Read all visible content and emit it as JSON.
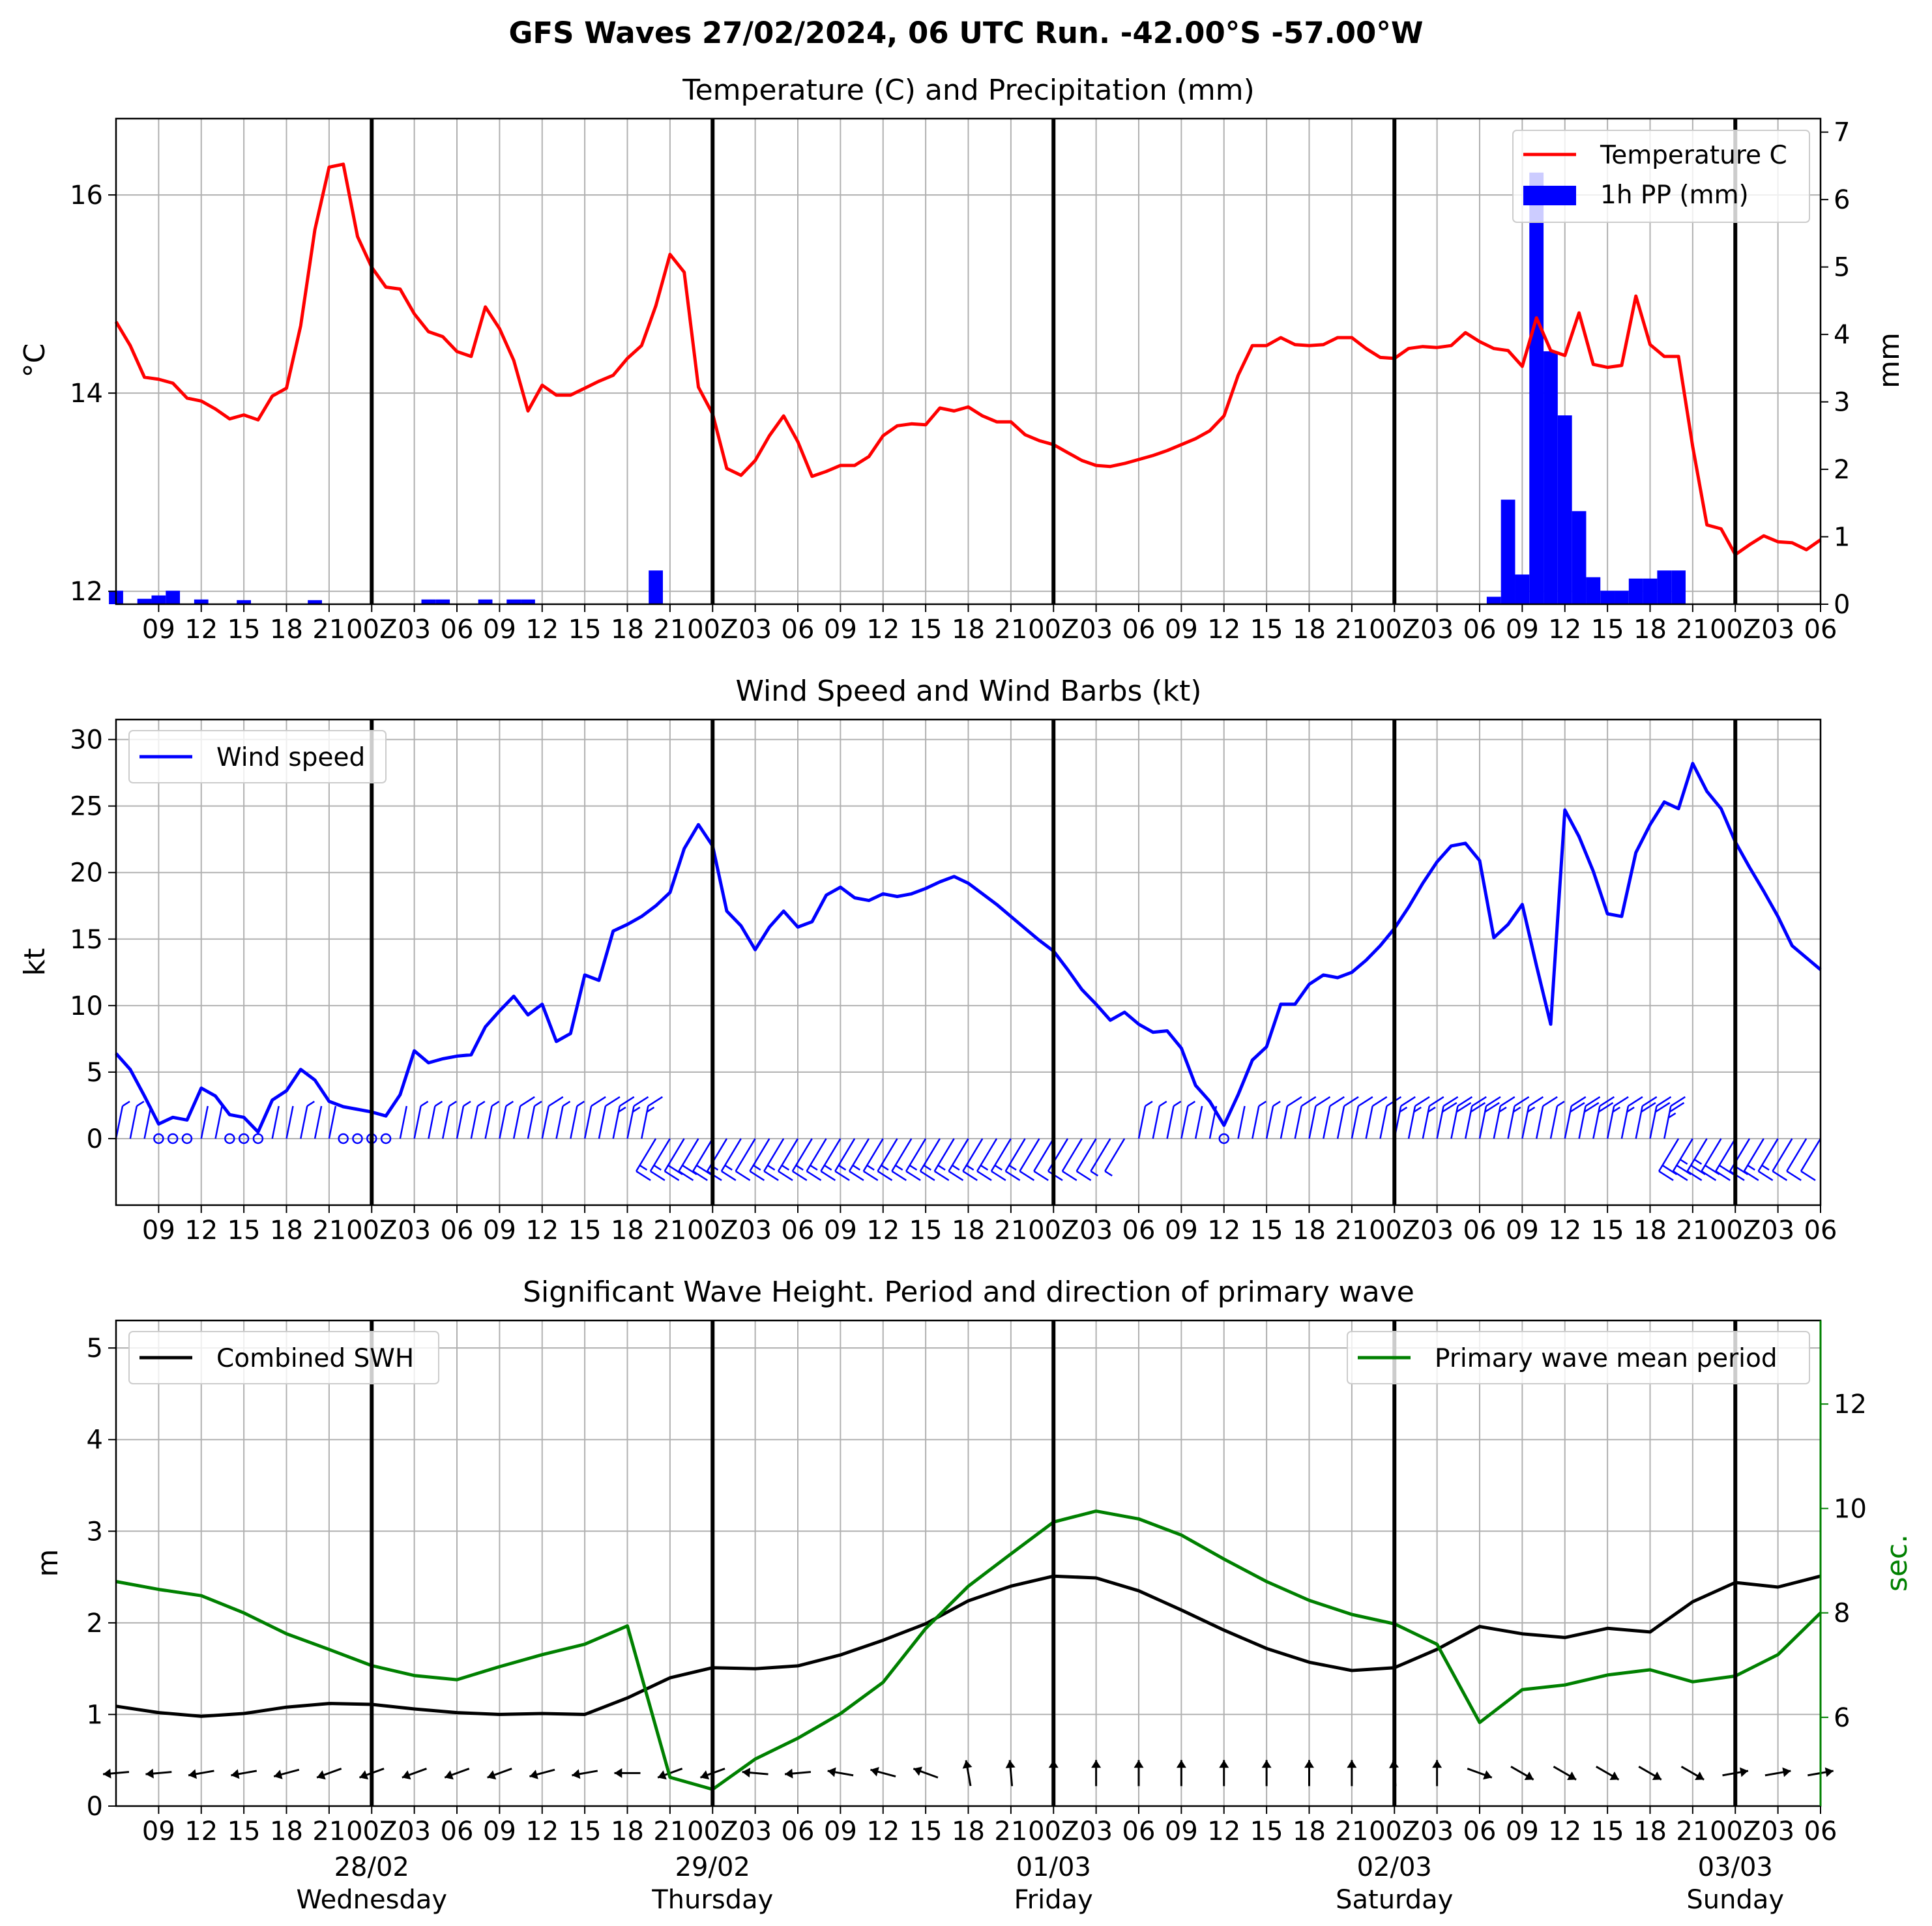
{
  "suptitle": "GFS Waves 27/02/2024, 06 UTC Run. -42.00°S -57.00°W",
  "colors": {
    "temperature": "#ff0000",
    "precip": "#0000ff",
    "wind": "#0000ff",
    "swh": "#000000",
    "period": "#008000",
    "grid": "#b0b0b0",
    "day_line": "#000000"
  },
  "x_axis": {
    "start_hour": 6,
    "end_hour": 126,
    "tick_step_hours": 3,
    "tick_labels": [
      "09",
      "12",
      "15",
      "18",
      "21",
      "00Z",
      "03",
      "06",
      "09",
      "12",
      "15",
      "18",
      "21",
      "00Z",
      "03",
      "06",
      "09",
      "12",
      "15",
      "18",
      "21",
      "00Z",
      "03",
      "06",
      "09",
      "12",
      "15",
      "18",
      "21",
      "00Z",
      "03",
      "06",
      "09",
      "12",
      "15",
      "18",
      "21",
      "00Z",
      "03",
      "06"
    ],
    "day_boundaries_hours": [
      24,
      48,
      72,
      96,
      120
    ],
    "day_labels": [
      {
        "date": "28/02",
        "weekday": "Wednesday"
      },
      {
        "date": "29/02",
        "weekday": "Thursday"
      },
      {
        "date": "01/03",
        "weekday": "Friday"
      },
      {
        "date": "02/03",
        "weekday": "Saturday"
      },
      {
        "date": "03/03",
        "weekday": "Sunday"
      }
    ]
  },
  "chart_data": [
    {
      "type": "line",
      "title": "Temperature (C) and Precipitation (mm)",
      "ylabel": "$^\\circ$C",
      "y2label": "mm",
      "ylim": [
        11.87,
        16.77
      ],
      "y_ticks": [
        12,
        14,
        16
      ],
      "y2lim": [
        0,
        7.2
      ],
      "y2_ticks": [
        0,
        1,
        2,
        3,
        4,
        5,
        6,
        7
      ],
      "legend": [
        "Temperature C",
        "1h PP (mm)"
      ],
      "legend_position": "top-right",
      "series": [
        {
          "name": "Temperature C",
          "axis": "left",
          "x_hours": [
            6,
            7,
            8,
            9,
            10,
            11,
            12,
            13,
            14,
            15,
            16,
            17,
            18,
            19,
            20,
            21,
            22,
            23,
            24,
            25,
            26,
            27,
            28,
            29,
            30,
            31,
            32,
            33,
            34,
            35,
            36,
            37,
            38,
            39,
            40,
            41,
            42,
            43,
            44,
            45,
            46,
            47,
            48,
            49,
            50,
            51,
            52,
            53,
            54,
            55,
            56,
            57,
            58,
            59,
            60,
            61,
            62,
            63,
            64,
            65,
            66,
            67,
            68,
            69,
            70,
            71,
            72,
            73,
            74,
            75,
            76,
            77,
            78,
            79,
            80,
            81,
            82,
            83,
            84,
            85,
            86,
            87,
            88,
            89,
            90,
            91,
            92,
            93,
            94,
            95,
            96,
            97,
            98,
            99,
            100,
            101,
            102,
            103,
            104,
            105,
            106,
            107,
            108,
            109,
            110,
            111,
            112,
            113,
            114,
            115,
            116,
            117,
            118,
            119,
            120,
            121,
            122,
            123,
            124,
            125,
            126
          ],
          "values": [
            14.72,
            14.48,
            14.16,
            14.14,
            14.1,
            13.95,
            13.92,
            13.84,
            13.74,
            13.78,
            13.73,
            13.97,
            14.05,
            14.68,
            15.65,
            16.28,
            16.31,
            15.58,
            15.27,
            15.07,
            15.05,
            14.8,
            14.62,
            14.57,
            14.42,
            14.37,
            14.87,
            14.65,
            14.33,
            13.82,
            14.08,
            13.98,
            13.98,
            14.05,
            14.12,
            14.18,
            14.35,
            14.48,
            14.88,
            15.4,
            15.22,
            14.06,
            13.79,
            13.24,
            13.17,
            13.32,
            13.57,
            13.77,
            13.51,
            13.16,
            13.21,
            13.27,
            13.27,
            13.36,
            13.57,
            13.67,
            13.69,
            13.68,
            13.85,
            13.82,
            13.86,
            13.77,
            13.71,
            13.71,
            13.58,
            13.52,
            13.48,
            13.4,
            13.32,
            13.27,
            13.26,
            13.29,
            13.33,
            13.37,
            13.42,
            13.48,
            13.54,
            13.62,
            13.77,
            14.18,
            14.48,
            14.48,
            14.56,
            14.49,
            14.48,
            14.49,
            14.56,
            14.56,
            14.45,
            14.36,
            14.35,
            14.45,
            14.47,
            14.46,
            14.48,
            14.61,
            14.52,
            14.45,
            14.43,
            14.27,
            14.76,
            14.43,
            14.38,
            14.81,
            14.29,
            14.26,
            14.28,
            14.98,
            14.49,
            14.37,
            14.37,
            13.46,
            12.67,
            12.63,
            12.37,
            12.47,
            12.56,
            12.5,
            12.49,
            12.42,
            12.52
          ]
        },
        {
          "name": "1h PP (mm)",
          "axis": "right",
          "kind": "bar",
          "x_hours": [
            6,
            8,
            9,
            10,
            12,
            15,
            20,
            28,
            29,
            32,
            34,
            35,
            44,
            103,
            104,
            105,
            106,
            107,
            108,
            109,
            110,
            111,
            112,
            113,
            114,
            115,
            116
          ],
          "values": [
            0.2,
            0.08,
            0.13,
            0.2,
            0.07,
            0.06,
            0.06,
            0.07,
            0.07,
            0.07,
            0.07,
            0.07,
            0.5,
            0.11,
            1.55,
            0.44,
            6.4,
            3.75,
            2.8,
            1.38,
            0.4,
            0.2,
            0.2,
            0.38,
            0.38,
            0.5,
            0.5
          ]
        }
      ]
    },
    {
      "type": "line",
      "title": "Wind Speed and Wind Barbs (kt)",
      "ylabel": "kt",
      "ylim": [
        -5,
        31.5
      ],
      "y_ticks": [
        0,
        5,
        10,
        15,
        20,
        25,
        30
      ],
      "legend": [
        "Wind speed"
      ],
      "legend_position": "top-left",
      "series": [
        {
          "name": "Wind speed",
          "x_hours": [
            6,
            7,
            8,
            9,
            10,
            11,
            12,
            13,
            14,
            15,
            16,
            17,
            18,
            19,
            20,
            21,
            22,
            23,
            24,
            25,
            26,
            27,
            28,
            29,
            30,
            31,
            32,
            33,
            34,
            35,
            36,
            37,
            38,
            39,
            40,
            41,
            42,
            43,
            44,
            45,
            46,
            47,
            48,
            49,
            50,
            51,
            52,
            53,
            54,
            55,
            56,
            57,
            58,
            59,
            60,
            61,
            62,
            63,
            64,
            65,
            66,
            67,
            68,
            69,
            70,
            71,
            72,
            73,
            74,
            75,
            76,
            77,
            78,
            79,
            80,
            81,
            82,
            83,
            84,
            85,
            86,
            87,
            88,
            89,
            90,
            91,
            92,
            93,
            94,
            95,
            96,
            97,
            98,
            99,
            100,
            101,
            102,
            103,
            104,
            105,
            106,
            107,
            108,
            109,
            110,
            111,
            112,
            113,
            114,
            115,
            116,
            117,
            118,
            119,
            120,
            121,
            122,
            123,
            124,
            125,
            126
          ],
          "values": [
            6.4,
            5.2,
            3.2,
            1.1,
            1.6,
            1.4,
            3.8,
            3.2,
            1.8,
            1.6,
            0.5,
            2.9,
            3.6,
            5.2,
            4.4,
            2.8,
            2.4,
            2.2,
            2,
            1.7,
            3.3,
            6.6,
            5.7,
            6,
            6.2,
            6.3,
            8.4,
            9.6,
            10.7,
            9.3,
            10.1,
            7.3,
            7.9,
            12.3,
            11.9,
            15.6,
            16.1,
            16.7,
            17.5,
            18.5,
            21.8,
            23.6,
            22,
            17.1,
            16,
            14.2,
            15.9,
            17.1,
            15.9,
            16.3,
            18.3,
            18.9,
            18.1,
            17.9,
            18.4,
            18.2,
            18.4,
            18.8,
            19.3,
            19.7,
            19.2,
            18.4,
            17.6,
            16.7,
            15.8,
            14.9,
            14.1,
            12.7,
            11.2,
            10.1,
            8.9,
            9.5,
            8.6,
            8,
            8.1,
            6.8,
            4,
            2.8,
            1,
            3.3,
            5.9,
            6.9,
            10.1,
            10.1,
            11.6,
            12.3,
            12.1,
            12.5,
            13.4,
            14.5,
            15.8,
            17.4,
            19.2,
            20.8,
            22,
            22.2,
            20.9,
            15.1,
            16.1,
            17.6,
            13,
            8.6,
            24.7,
            22.7,
            20.1,
            16.9,
            16.7,
            21.5,
            23.6,
            25.3,
            24.8,
            28.2,
            26.1,
            24.8,
            22.3,
            20.4,
            18.6,
            16.7,
            14.5,
            13.6,
            12.7
          ]
        }
      ]
    },
    {
      "type": "line",
      "title": "Significant Wave Height. Period and direction of primary wave",
      "ylabel": "m",
      "y2label": "sec.",
      "ylim": [
        0,
        5.3
      ],
      "y_ticks": [
        0,
        1,
        2,
        3,
        4,
        5
      ],
      "y2lim": [
        4.3,
        13.6
      ],
      "y2_ticks": [
        6,
        8,
        10,
        12
      ],
      "legend": [
        "Combined SWH",
        "Primary wave mean period"
      ],
      "series": [
        {
          "name": "Combined SWH",
          "axis": "left",
          "x_hours": [
            6,
            9,
            12,
            15,
            18,
            21,
            24,
            27,
            30,
            33,
            36,
            39,
            42,
            45,
            48,
            51,
            54,
            57,
            60,
            63,
            66,
            69,
            72,
            75,
            78,
            81,
            84,
            87,
            90,
            93,
            96,
            99,
            102,
            105,
            108,
            111,
            114,
            117,
            120,
            123,
            126
          ],
          "values": [
            1.09,
            1.02,
            0.98,
            1.01,
            1.08,
            1.12,
            1.11,
            1.06,
            1.02,
            1.0,
            1.01,
            1.0,
            1.18,
            1.4,
            1.51,
            1.5,
            1.53,
            1.65,
            1.81,
            1.99,
            2.24,
            2.4,
            2.51,
            2.49,
            2.35,
            2.14,
            1.92,
            1.72,
            1.57,
            1.48,
            1.51,
            1.71,
            1.96,
            1.88,
            1.84,
            1.94,
            1.9,
            2.23,
            2.44,
            2.39,
            2.51
          ]
        },
        {
          "name": "Primary wave mean period",
          "axis": "right",
          "x_hours": [
            6,
            9,
            12,
            15,
            18,
            21,
            24,
            27,
            30,
            33,
            36,
            39,
            42,
            45,
            48,
            51,
            54,
            57,
            60,
            63,
            66,
            69,
            72,
            75,
            78,
            81,
            84,
            87,
            90,
            93,
            96,
            99,
            102,
            105,
            108,
            111,
            114,
            117,
            120,
            123,
            126
          ],
          "values": [
            8.6,
            8.45,
            8.33,
            8.0,
            7.6,
            7.3,
            6.99,
            6.8,
            6.72,
            6.97,
            7.2,
            7.4,
            7.75,
            4.85,
            4.62,
            5.2,
            5.6,
            6.07,
            6.67,
            7.7,
            8.51,
            9.13,
            9.74,
            9.95,
            9.8,
            9.49,
            9.03,
            8.6,
            8.24,
            7.97,
            7.79,
            7.4,
            5.9,
            6.53,
            6.62,
            6.81,
            6.91,
            6.68,
            6.79,
            7.2,
            8.0
          ]
        }
      ],
      "wave_direction_arrows": {
        "x_hours": [
          6,
          9,
          12,
          15,
          18,
          21,
          24,
          27,
          30,
          33,
          36,
          39,
          42,
          45,
          48,
          51,
          54,
          57,
          60,
          63,
          66,
          69,
          72,
          75,
          78,
          81,
          84,
          87,
          90,
          93,
          96,
          99,
          102,
          105,
          108,
          111,
          114,
          117,
          120,
          123,
          126
        ],
        "angle_deg": [
          185,
          185,
          190,
          190,
          195,
          200,
          200,
          200,
          200,
          200,
          195,
          190,
          180,
          200,
          200,
          175,
          185,
          170,
          165,
          160,
          100,
          95,
          90,
          90,
          90,
          90,
          90,
          90,
          90,
          90,
          95,
          90,
          340,
          330,
          330,
          330,
          330,
          330,
          10,
          10,
          10
        ]
      }
    }
  ]
}
